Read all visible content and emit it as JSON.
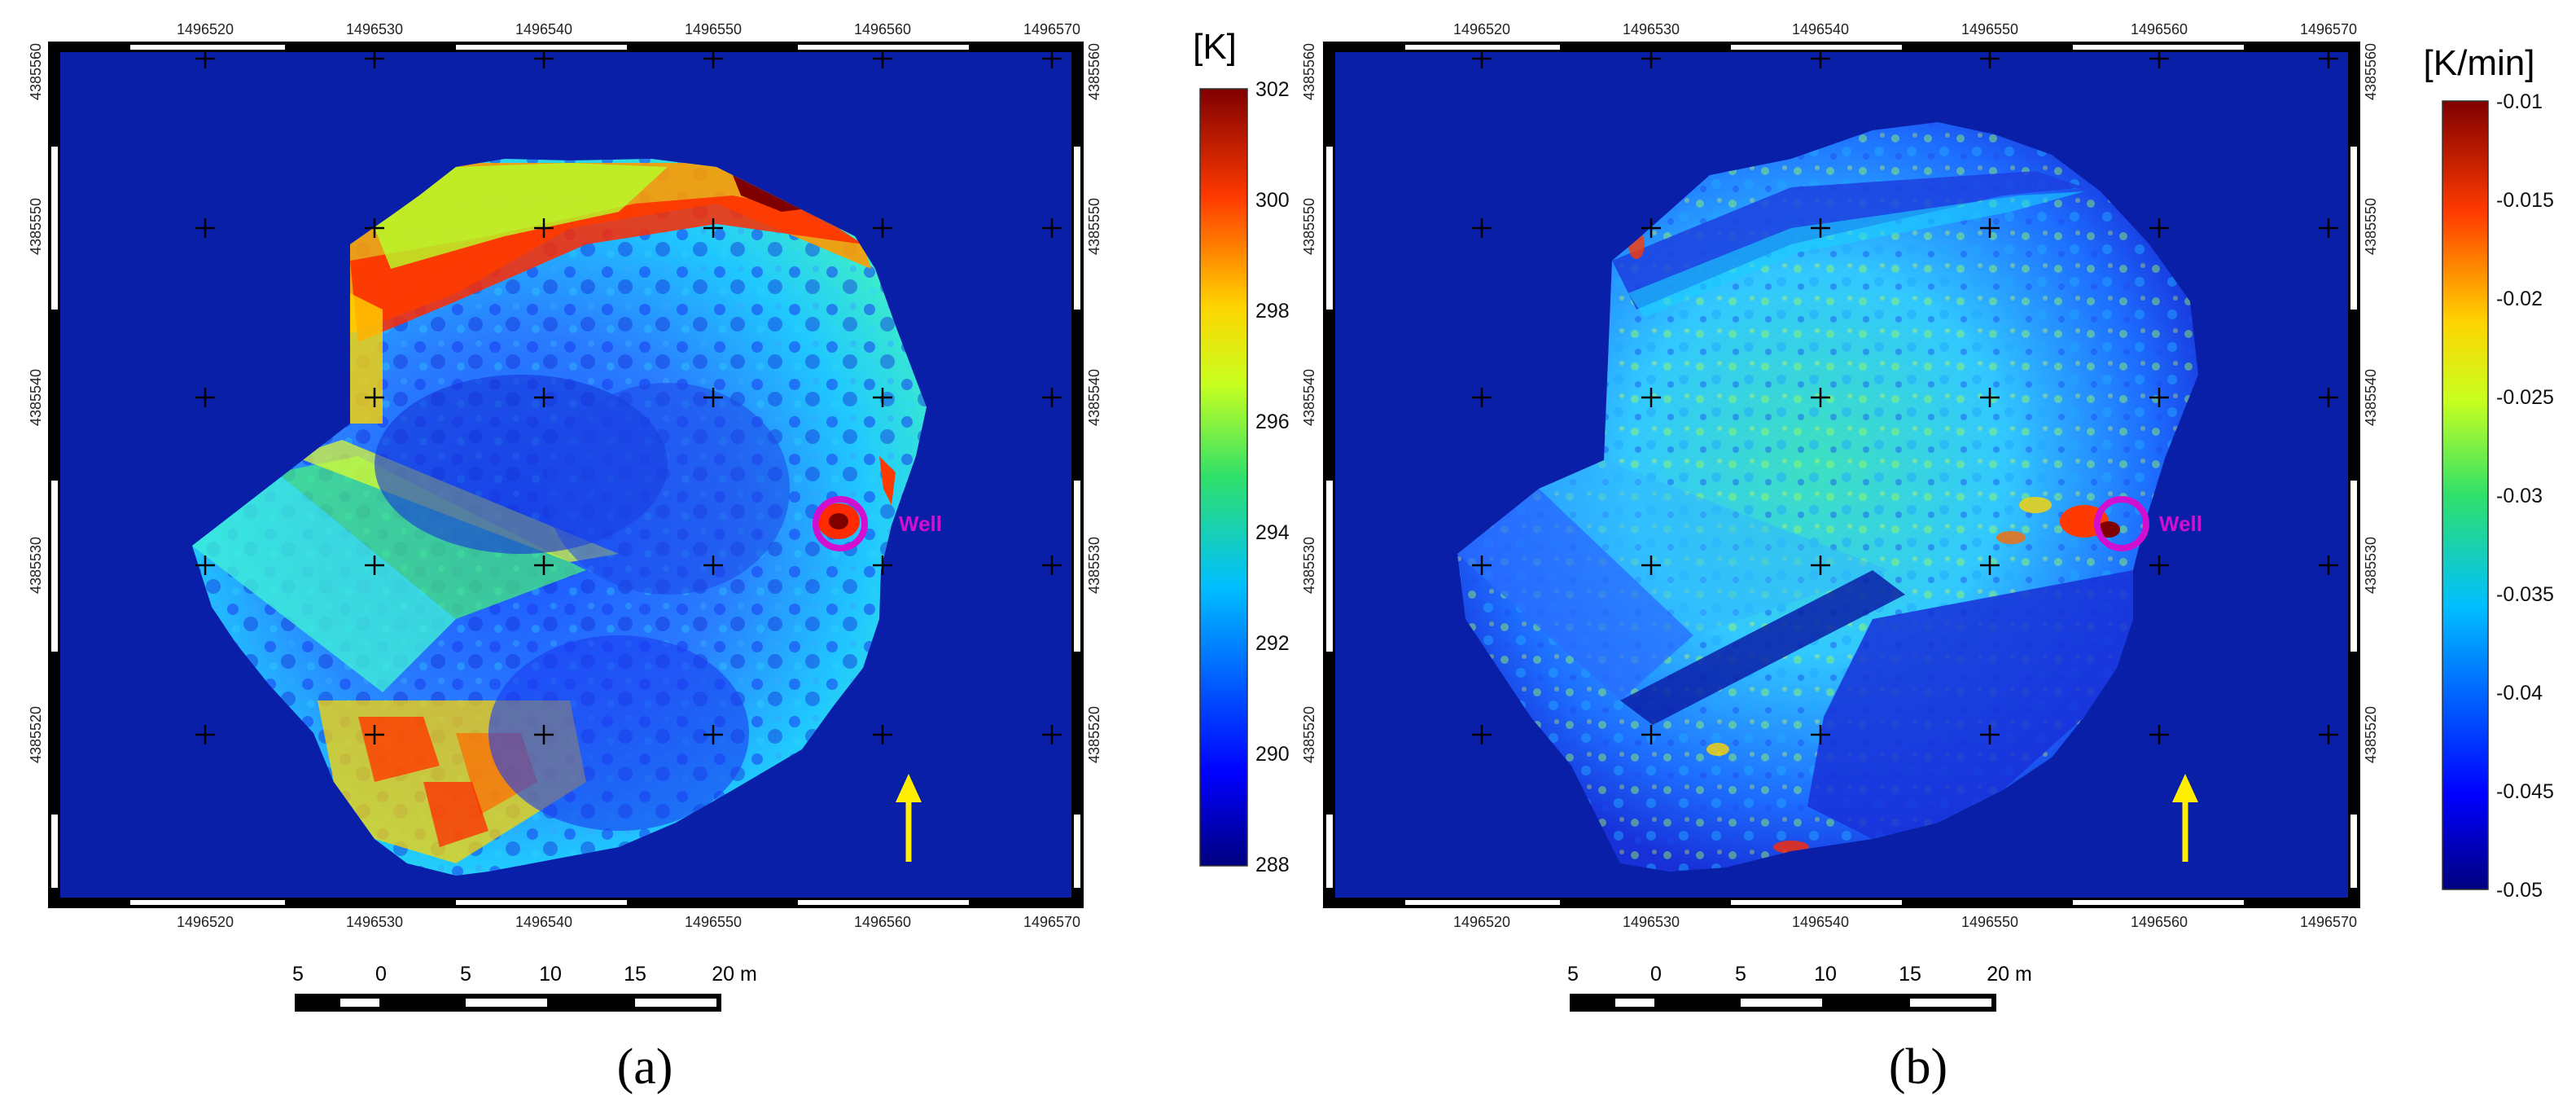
{
  "panels": [
    {
      "id": "a",
      "panel_label": "(a)",
      "colorbar": {
        "unit": "[K]",
        "ticks": [
          "302",
          "300",
          "298",
          "296",
          "294",
          "292",
          "290",
          "288"
        ]
      },
      "x_ticks": [
        "1496520",
        "1496530",
        "1496540",
        "1496550",
        "1496560",
        "1496570"
      ],
      "y_ticks": [
        "4385560",
        "4385550",
        "4385540",
        "4385530",
        "4385520"
      ],
      "well_label": "Well",
      "scale_bar": {
        "labels": [
          "5",
          "0",
          "5",
          "10",
          "15",
          "20 m"
        ]
      }
    },
    {
      "id": "b",
      "panel_label": "(b)",
      "colorbar": {
        "unit": "[K/min]",
        "ticks": [
          "-0.01",
          "-0.015",
          "-0.02",
          "-0.025",
          "-0.03",
          "-0.035",
          "-0.04",
          "-0.045",
          "-0.05"
        ]
      },
      "x_ticks": [
        "1496520",
        "1496530",
        "1496540",
        "1496550",
        "1496560",
        "1496570"
      ],
      "y_ticks": [
        "4385560",
        "4385550",
        "4385540",
        "4385530",
        "4385520"
      ],
      "well_label": "Well",
      "scale_bar": {
        "labels": [
          "5",
          "0",
          "5",
          "10",
          "15",
          "20 m"
        ]
      }
    }
  ],
  "colors": {
    "background_field": "#0a1fa8",
    "well_marker": "#d10fd0",
    "north_arrow": "#ffee00"
  },
  "icons": [
    "north-arrow-icon",
    "well-circle-icon",
    "crosshair-grid"
  ]
}
